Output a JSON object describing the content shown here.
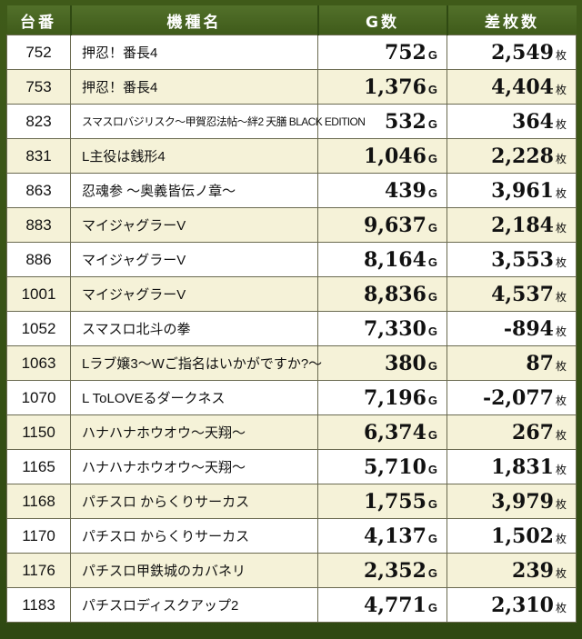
{
  "headers": {
    "no": "台番",
    "name": "機種名",
    "games": "G数",
    "diff": "差枚数"
  },
  "units": {
    "games": "G",
    "diff": "枚"
  },
  "rows": [
    {
      "no": "752",
      "name": "押忍！番長4",
      "games": "752",
      "diff": "2,549"
    },
    {
      "no": "753",
      "name": "押忍！番長4",
      "games": "1,376",
      "diff": "4,404"
    },
    {
      "no": "823",
      "name": "スマスロバジリスク～甲賀忍法帖～絆2 天膳 BLACK EDITION",
      "games": "532",
      "diff": "364"
    },
    {
      "no": "831",
      "name": "L主役は銭形4",
      "games": "1,046",
      "diff": "2,228"
    },
    {
      "no": "863",
      "name": "忍魂参 ～奥義皆伝ノ章～",
      "games": "439",
      "diff": "3,961"
    },
    {
      "no": "883",
      "name": "マイジャグラーV",
      "games": "9,637",
      "diff": "2,184"
    },
    {
      "no": "886",
      "name": "マイジャグラーV",
      "games": "8,164",
      "diff": "3,553"
    },
    {
      "no": "1001",
      "name": "マイジャグラーV",
      "games": "8,836",
      "diff": "4,537"
    },
    {
      "no": "1052",
      "name": "スマスロ北斗の拳",
      "games": "7,330",
      "diff": "-894"
    },
    {
      "no": "1063",
      "name": "Lラブ嬢3～Wご指名はいかがですか?～",
      "games": "380",
      "diff": "87"
    },
    {
      "no": "1070",
      "name": "L ToLOVEるダークネス",
      "games": "7,196",
      "diff": "-2,077"
    },
    {
      "no": "1150",
      "name": "ハナハナホウオウ～天翔～",
      "games": "6,374",
      "diff": "267"
    },
    {
      "no": "1165",
      "name": "ハナハナホウオウ～天翔～",
      "games": "5,710",
      "diff": "1,831"
    },
    {
      "no": "1168",
      "name": "パチスロ からくりサーカス",
      "games": "1,755",
      "diff": "3,979"
    },
    {
      "no": "1170",
      "name": "パチスロ からくりサーカス",
      "games": "4,137",
      "diff": "1,502"
    },
    {
      "no": "1176",
      "name": "パチスロ甲鉄城のカバネリ",
      "games": "2,352",
      "diff": "239"
    },
    {
      "no": "1183",
      "name": "パチスロディスクアップ2",
      "games": "4,771",
      "diff": "2,310"
    }
  ]
}
